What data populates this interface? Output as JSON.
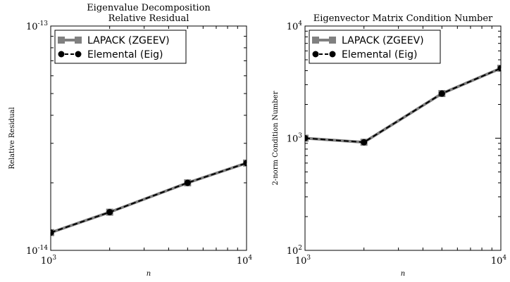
{
  "chart_data": [
    {
      "type": "line",
      "title": "Eigenvalue Decomposition",
      "subtitle": "Relative Residual",
      "xlabel": "n",
      "ylabel": "Relative Residual",
      "xscale": "log",
      "yscale": "log",
      "xlim": [
        1000,
        10000
      ],
      "ylim": [
        1e-14,
        1e-13
      ],
      "xticks": [
        {
          "value": 1000,
          "base": "10",
          "exp": "3"
        },
        {
          "value": 10000,
          "base": "10",
          "exp": "4"
        }
      ],
      "yticks": [
        {
          "value": 1e-14,
          "base": "10",
          "exp": "-14"
        },
        {
          "value": 1e-13,
          "base": "10",
          "exp": "-13"
        }
      ],
      "legend_position": "top-left",
      "x": [
        1000,
        2000,
        5000,
        10000
      ],
      "series": [
        {
          "name": "LAPACK (ZGEEV)",
          "values": [
            1.2e-14,
            1.48e-14,
            2e-14,
            2.45e-14
          ],
          "color": "#808080"
        },
        {
          "name": "Elemental (Eig)",
          "values": [
            1.2e-14,
            1.48e-14,
            2e-14,
            2.45e-14
          ],
          "color": "#000000"
        }
      ]
    },
    {
      "type": "line",
      "title": "Eigenvector Matrix Condition Number",
      "xlabel": "n",
      "ylabel": "2-norm Condition Number",
      "xscale": "log",
      "yscale": "log",
      "xlim": [
        1000,
        10000
      ],
      "ylim": [
        100,
        10000
      ],
      "xticks": [
        {
          "value": 1000,
          "base": "10",
          "exp": "3"
        },
        {
          "value": 10000,
          "base": "10",
          "exp": "4"
        }
      ],
      "yticks": [
        {
          "value": 100,
          "base": "10",
          "exp": "2"
        },
        {
          "value": 1000,
          "base": "10",
          "exp": "3"
        },
        {
          "value": 10000,
          "base": "10",
          "exp": "4"
        }
      ],
      "legend_position": "top-left",
      "x": [
        1000,
        2000,
        5000,
        10000
      ],
      "series": [
        {
          "name": "LAPACK (ZGEEV)",
          "values": [
            1000,
            920,
            2500,
            4200
          ],
          "color": "#808080"
        },
        {
          "name": "Elemental (Eig)",
          "values": [
            1000,
            920,
            2500,
            4200
          ],
          "color": "#000000"
        }
      ]
    }
  ]
}
